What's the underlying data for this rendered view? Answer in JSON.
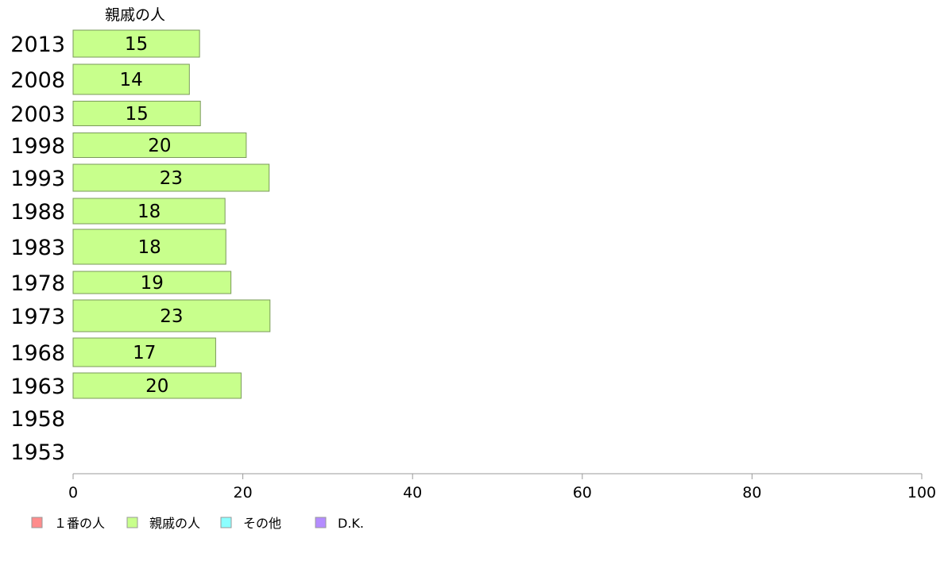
{
  "chart_data": {
    "type": "bar",
    "orientation": "horizontal",
    "series_label": "親戚の人",
    "categories": [
      "2013",
      "2008",
      "2003",
      "1998",
      "1993",
      "1988",
      "1983",
      "1978",
      "1973",
      "1968",
      "1963",
      "1958",
      "1953"
    ],
    "values": [
      15,
      14,
      15,
      20,
      23,
      18,
      18,
      19,
      23,
      17,
      20,
      null,
      null
    ],
    "exact_values": [
      14.9,
      13.7,
      15.0,
      20.4,
      23.1,
      17.9,
      18.0,
      18.6,
      23.2,
      16.8,
      19.8,
      null,
      null
    ],
    "xlim": [
      0,
      100
    ],
    "xticks": [
      0,
      20,
      40,
      60,
      80,
      100
    ],
    "grid": false,
    "legend_position": "bottom-left",
    "legend": [
      {
        "name": "１番の人",
        "color": "#ff8c8c"
      },
      {
        "name": "親戚の人",
        "color": "#c8ff8c"
      },
      {
        "name": "その他",
        "color": "#8cffff"
      },
      {
        "name": "D.K.",
        "color": "#b48cff"
      }
    ],
    "bar_color": "#c8ff8c"
  }
}
